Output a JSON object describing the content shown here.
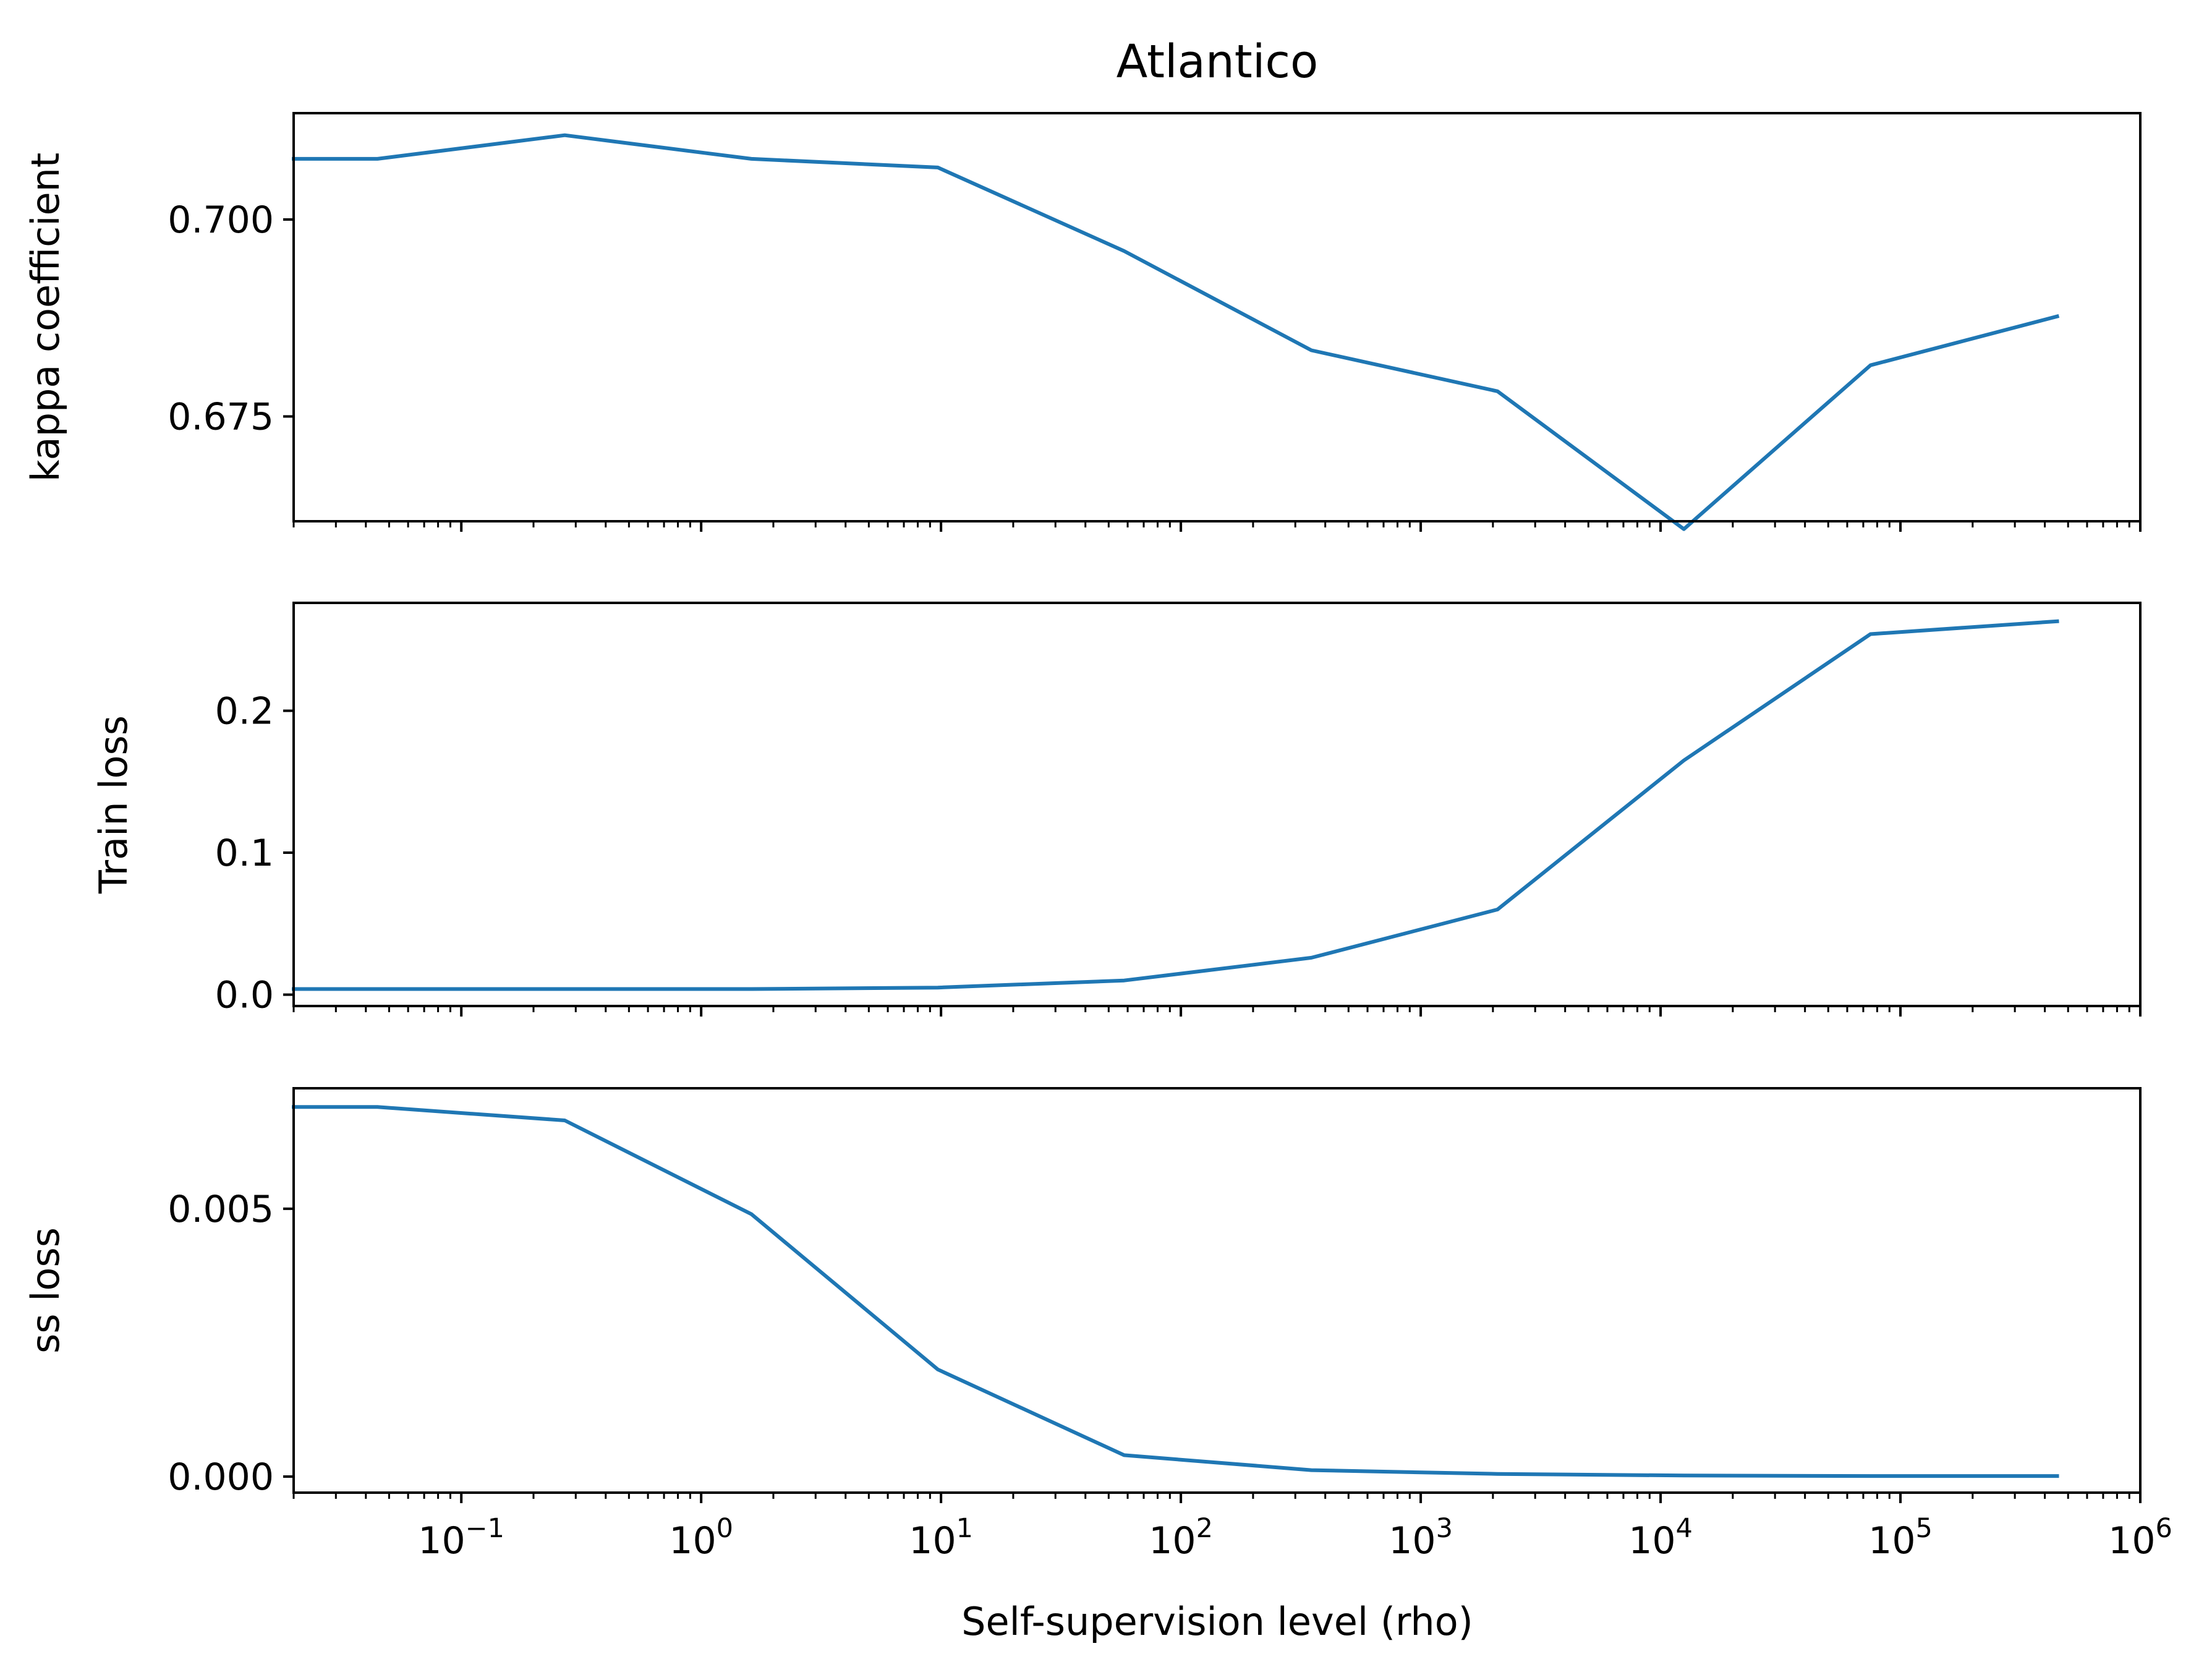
{
  "chart_data": {
    "type": "line",
    "title": "Atlantico",
    "xlabel": "Self-supervision level (rho)",
    "xscale": "log",
    "xlim": [
      0.02,
      1000000
    ],
    "x_ticks": [
      {
        "value": 0.1,
        "base": "10",
        "exp": "−1"
      },
      {
        "value": 1,
        "base": "10",
        "exp": "0"
      },
      {
        "value": 10,
        "base": "10",
        "exp": "1"
      },
      {
        "value": 100,
        "base": "10",
        "exp": "2"
      },
      {
        "value": 1000,
        "base": "10",
        "exp": "3"
      },
      {
        "value": 10000,
        "base": "10",
        "exp": "4"
      },
      {
        "value": 100000,
        "base": "10",
        "exp": "5"
      },
      {
        "value": 1000000,
        "base": "10",
        "exp": "6"
      }
    ],
    "x": [
      0.02,
      0.0447,
      0.27,
      1.62,
      9.7,
      58,
      350,
      2090,
      12500,
      75000,
      450000
    ],
    "line_color": "#1f77b4",
    "grid": false,
    "legend": "none",
    "subplots": [
      {
        "ylabel": "kappa coefficient",
        "ylim": [
          0.6617,
          0.7135
        ],
        "yticks": [
          "0.675",
          "0.700"
        ],
        "values": [
          0.7077,
          0.7077,
          0.7107,
          0.7077,
          0.7066,
          0.696,
          0.6834,
          0.6782,
          0.6607,
          0.6815,
          0.6877
        ]
      },
      {
        "ylabel": "Train loss",
        "ylim": [
          -0.008,
          0.276
        ],
        "yticks": [
          "0.0",
          "0.1",
          "0.2"
        ],
        "values": [
          0.004,
          0.004,
          0.004,
          0.004,
          0.005,
          0.01,
          0.026,
          0.06,
          0.165,
          0.254,
          0.263
        ]
      },
      {
        "ylabel": "ss loss",
        "ylim": [
          -0.0003,
          0.00725
        ],
        "yticks": [
          "0.000",
          "0.005"
        ],
        "values": [
          0.0069,
          0.0069,
          0.00665,
          0.0049,
          0.002,
          0.0004,
          0.00012,
          5e-05,
          2e-05,
          1e-05,
          1e-05
        ]
      }
    ]
  }
}
